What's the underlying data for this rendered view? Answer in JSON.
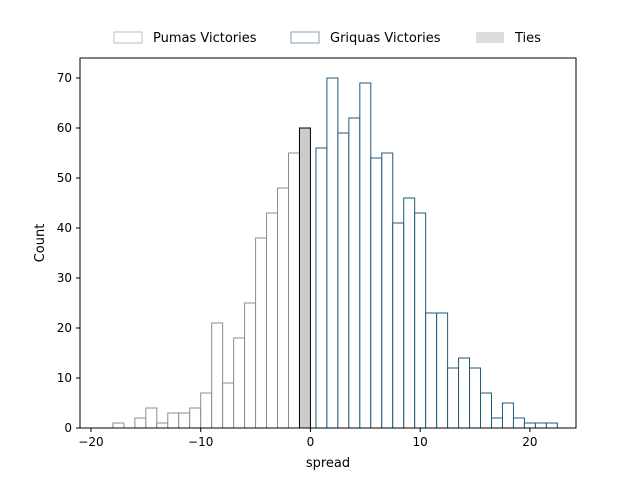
{
  "chart_data": {
    "type": "bar",
    "xlabel": "spread",
    "ylabel": "Count",
    "xlim": [
      -21,
      24.2
    ],
    "ylim": [
      0,
      74
    ],
    "xticks": [
      -20,
      -10,
      0,
      10,
      20
    ],
    "yticks": [
      0,
      10,
      20,
      30,
      40,
      50,
      60,
      70
    ],
    "bin_width": 1,
    "grid": false,
    "legend_position": "top-center",
    "series": [
      {
        "name": "Pumas Victories",
        "fill": "#ffffff",
        "stroke": "#8c8c8c",
        "bins": [
          {
            "x": -18,
            "count": 1
          },
          {
            "x": -16,
            "count": 2
          },
          {
            "x": -15,
            "count": 4
          },
          {
            "x": -14,
            "count": 1
          },
          {
            "x": -13,
            "count": 3
          },
          {
            "x": -12,
            "count": 3
          },
          {
            "x": -11,
            "count": 4
          },
          {
            "x": -10,
            "count": 7
          },
          {
            "x": -9,
            "count": 21
          },
          {
            "x": -8,
            "count": 9
          },
          {
            "x": -7,
            "count": 18
          },
          {
            "x": -6,
            "count": 25
          },
          {
            "x": -5,
            "count": 38
          },
          {
            "x": -4,
            "count": 43
          },
          {
            "x": -3,
            "count": 48
          },
          {
            "x": -2,
            "count": 55
          }
        ]
      },
      {
        "name": "Griquas Victories",
        "fill": "#ffffff",
        "stroke": "#1f5a7a",
        "bins": [
          {
            "x": 0.5,
            "count": 56
          },
          {
            "x": 1.5,
            "count": 70
          },
          {
            "x": 2.5,
            "count": 59
          },
          {
            "x": 3.5,
            "count": 62
          },
          {
            "x": 4.5,
            "count": 69
          },
          {
            "x": 5.5,
            "count": 54
          },
          {
            "x": 6.5,
            "count": 55
          },
          {
            "x": 7.5,
            "count": 41
          },
          {
            "x": 8.5,
            "count": 46
          },
          {
            "x": 9.5,
            "count": 43
          },
          {
            "x": 10.5,
            "count": 23
          },
          {
            "x": 11.5,
            "count": 23
          },
          {
            "x": 12.5,
            "count": 12
          },
          {
            "x": 13.5,
            "count": 14
          },
          {
            "x": 14.5,
            "count": 12
          },
          {
            "x": 15.5,
            "count": 7
          },
          {
            "x": 16.5,
            "count": 2
          },
          {
            "x": 17.5,
            "count": 5
          },
          {
            "x": 18.5,
            "count": 2
          },
          {
            "x": 19.5,
            "count": 1
          },
          {
            "x": 20.5,
            "count": 1
          },
          {
            "x": 21.5,
            "count": 1
          }
        ]
      },
      {
        "name": "Ties",
        "fill": "#cccccc",
        "stroke": "#000000",
        "bins": [
          {
            "x": -1,
            "count": 60
          }
        ]
      }
    ]
  }
}
